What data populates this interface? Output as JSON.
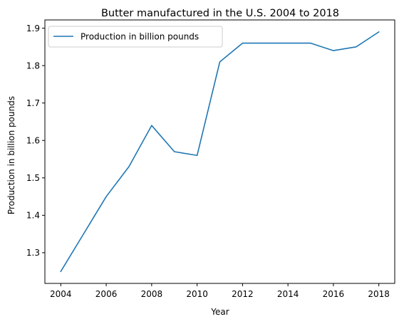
{
  "chart_data": {
    "type": "line",
    "title": "Butter manufactured in the U.S. 2004 to 2018",
    "xlabel": "Year",
    "ylabel": "Production in billion pounds",
    "x": [
      2004,
      2005,
      2006,
      2007,
      2008,
      2009,
      2010,
      2011,
      2012,
      2013,
      2014,
      2015,
      2016,
      2017,
      2018
    ],
    "series": [
      {
        "name": "Production in billion pounds",
        "color": "#1f77b4",
        "values": [
          1.25,
          1.35,
          1.45,
          1.53,
          1.64,
          1.57,
          1.56,
          1.81,
          1.86,
          1.86,
          1.86,
          1.86,
          1.84,
          1.85,
          1.89
        ]
      }
    ],
    "xlim": [
      2003.3,
      2018.7
    ],
    "ylim": [
      1.218,
      1.922
    ],
    "xticks": [
      2004,
      2006,
      2008,
      2010,
      2012,
      2014,
      2016,
      2018
    ],
    "yticks": [
      1.3,
      1.4,
      1.5,
      1.6,
      1.7,
      1.8,
      1.9
    ],
    "ytick_labels": [
      "1.3",
      "1.4",
      "1.5",
      "1.6",
      "1.7",
      "1.8",
      "1.9"
    ],
    "grid": false,
    "legend": "top-left"
  }
}
